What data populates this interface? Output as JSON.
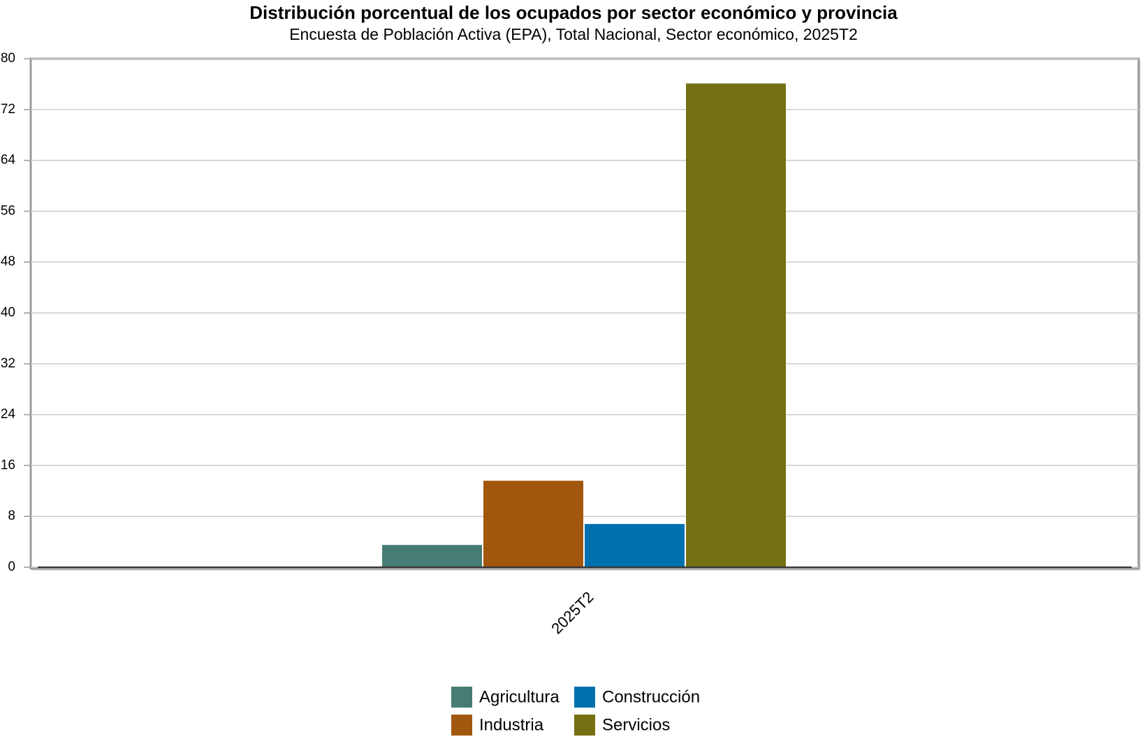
{
  "chart_data": {
    "type": "bar",
    "title": "Distribución porcentual de los ocupados por sector económico y provincia",
    "subtitle": "Encuesta de Población Activa (EPA), Total Nacional, Sector económico, 2025T2",
    "categories": [
      "2025T2"
    ],
    "series": [
      {
        "name": "Agricultura",
        "color": "#467c74",
        "values": [
          3.5
        ]
      },
      {
        "name": "Industria",
        "color": "#a2570e",
        "values": [
          13.6
        ]
      },
      {
        "name": "Construcción",
        "color": "#0071ae",
        "values": [
          6.8
        ]
      },
      {
        "name": "Servicios",
        "color": "#757012",
        "values": [
          76.1
        ]
      }
    ],
    "ylim": [
      0,
      80
    ],
    "yticks": [
      0,
      8,
      16,
      24,
      32,
      40,
      48,
      56,
      64,
      72,
      80
    ],
    "grid": true
  }
}
